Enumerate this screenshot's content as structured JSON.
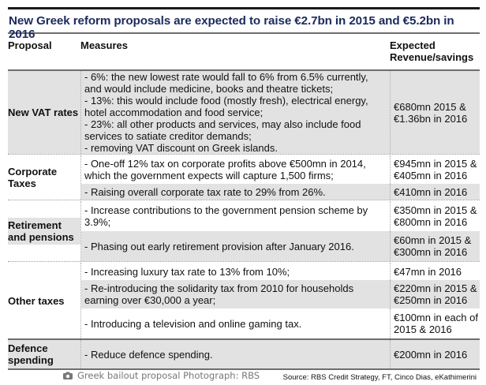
{
  "title": "New Greek reform proposals are expected to raise €2.7bn in 2015 and €5.2bn in 2016",
  "columns": {
    "proposal": "Proposal",
    "measures": "Measures",
    "revenue_line1": "Expected",
    "revenue_line2": "Revenue/savings"
  },
  "groups": [
    {
      "label": "New VAT rates",
      "rows": [
        {
          "measures": [
            "- 6%: the new lowest rate would fall to 6% from 6.5% currently,",
            "and would include medicine, books and theatre tickets;",
            "- 13%: this would include food (mostly fresh), electrical energy,",
            "hotel accommodation and food service;",
            "- 23%: all other products and services, may also include food",
            "services to satiate creditor demands;",
            "- removing VAT discount on Greek islands."
          ],
          "revenue": [
            "€680mn 2015 &",
            "€1.36bn in 2016"
          ]
        }
      ]
    },
    {
      "label": "Corporate Taxes",
      "rows": [
        {
          "measures": [
            "- One-off 12% tax on corporate profits above €500mn in 2014,",
            "which the government expects will capture 1,500 firms;"
          ],
          "revenue": [
            "€945mn in 2015 &",
            "€405mn in 2016"
          ]
        },
        {
          "measures": [
            "- Raising overall corporate tax rate to 29% from 26%."
          ],
          "revenue": [
            "€410mn in 2016"
          ]
        }
      ]
    },
    {
      "label": "Retirement and pensions",
      "rows": [
        {
          "measures": [
            "- Increase  contributions to the government pension scheme by",
            "3.9%;"
          ],
          "revenue": [
            "€350mn in 2015 &",
            "€800mn in 2016"
          ]
        },
        {
          "measures": [
            "- Phasing out early retirement provision after January 2016."
          ],
          "revenue": [
            "€60mn in 2015 &",
            "€300mn in 2016"
          ]
        }
      ]
    },
    {
      "label": "Other taxes",
      "rows": [
        {
          "measures": [
            "- Increasing luxury tax rate to 13% from 10%;"
          ],
          "revenue": [
            "€47mn in 2016"
          ]
        },
        {
          "measures": [
            "- Re-introducing the solidarity tax from 2010 for households",
            "earning over €30,000 a year;"
          ],
          "revenue": [
            "€220mn in 2015 &",
            "€250mn in 2016"
          ]
        },
        {
          "measures": [
            "- Introducing a television and online gaming tax."
          ],
          "revenue": [
            "€100mn in each of",
            "2015 & 2016"
          ]
        }
      ]
    },
    {
      "label": "Defence spending",
      "rows": [
        {
          "measures": [
            "- Reduce defence spending."
          ],
          "revenue": [
            "€200mn in 2016"
          ]
        }
      ]
    }
  ],
  "source": "Source:  RBS Credit Strategy, FT, Cinco Dias, eKathimerini",
  "caption": {
    "icon": "camera-icon",
    "text": "Greek bailout proposal Photograph: RBS"
  },
  "colors": {
    "title": "#1b2a5c",
    "shade": "#e2e2e2",
    "caption": "#777777"
  }
}
